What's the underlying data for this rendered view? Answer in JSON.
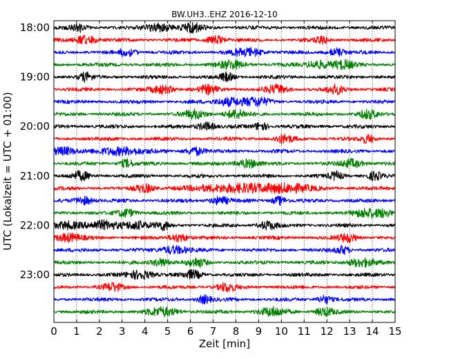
{
  "chart_data": {
    "type": "line",
    "title": "BW.UH3..EHZ 2016-12-10",
    "xlabel": "Zeit  [min]",
    "ylabel": "UTC (Lokalzeit = UTC + 01:00)",
    "xlim": [
      0,
      15
    ],
    "x_ticks": [
      "0",
      "1",
      "2",
      "3",
      "4",
      "5",
      "6",
      "7",
      "8",
      "9",
      "10",
      "11",
      "12",
      "13",
      "14",
      "15"
    ],
    "y_ticks": [
      "18:00",
      "19:00",
      "20:00",
      "21:00",
      "22:00",
      "23:00"
    ],
    "grid": "x dotted",
    "colors": [
      "#000000",
      "#ff0000",
      "#0000ff",
      "#008000"
    ],
    "row_minutes": 15,
    "traces": [
      {
        "start": "18:00",
        "color": "#000000",
        "events": [
          [
            1.1,
            0.3
          ],
          [
            4.6,
            0.6
          ],
          [
            6.1,
            0.5
          ]
        ]
      },
      {
        "start": "18:15",
        "color": "#ff0000",
        "events": [
          [
            1.4,
            0.5
          ],
          [
            7.1,
            0.4
          ],
          [
            11.8,
            0.3
          ]
        ]
      },
      {
        "start": "18:30",
        "color": "#0000ff",
        "events": [
          [
            3.2,
            0.4
          ],
          [
            8.5,
            0.7
          ],
          [
            12.4,
            0.4
          ]
        ]
      },
      {
        "start": "18:45",
        "color": "#008000",
        "events": [
          [
            7.8,
            0.6
          ],
          [
            11.6,
            0.5
          ],
          [
            12.7,
            0.5
          ]
        ]
      },
      {
        "start": "19:00",
        "color": "#000000",
        "events": [
          [
            1.4,
            0.3
          ],
          [
            7.6,
            0.3
          ]
        ]
      },
      {
        "start": "19:15",
        "color": "#ff0000",
        "events": [
          [
            4.8,
            0.5
          ],
          [
            6.8,
            0.4
          ],
          [
            9.8,
            0.5
          ],
          [
            12.4,
            0.4
          ]
        ]
      },
      {
        "start": "19:30",
        "color": "#0000ff",
        "events": [
          [
            7.7,
            0.6
          ],
          [
            8.9,
            0.6
          ]
        ]
      },
      {
        "start": "19:45",
        "color": "#008000",
        "events": [
          [
            6.2,
            0.5
          ],
          [
            8.0,
            0.5
          ],
          [
            13.8,
            0.4
          ]
        ]
      },
      {
        "start": "20:00",
        "color": "#000000",
        "events": [
          [
            6.7,
            0.4
          ],
          [
            9.1,
            0.3
          ]
        ]
      },
      {
        "start": "20:15",
        "color": "#ff0000",
        "events": [
          [
            10.1,
            0.4
          ],
          [
            13.8,
            0.3
          ]
        ]
      },
      {
        "start": "20:30",
        "color": "#0000ff",
        "events": [
          [
            0.4,
            0.6
          ],
          [
            3.0,
            1.0
          ],
          [
            6.2,
            0.4
          ]
        ]
      },
      {
        "start": "20:45",
        "color": "#008000",
        "events": [
          [
            3.2,
            0.3
          ],
          [
            8.5,
            0.5
          ],
          [
            13.1,
            0.5
          ]
        ]
      },
      {
        "start": "21:00",
        "color": "#000000",
        "events": [
          [
            1.2,
            0.4
          ],
          [
            12.4,
            0.3
          ],
          [
            14.1,
            0.3
          ]
        ]
      },
      {
        "start": "21:15",
        "color": "#ff0000",
        "events": [
          [
            4.0,
            0.4
          ],
          [
            7.9,
            1.8
          ],
          [
            10.3,
            1.0
          ]
        ]
      },
      {
        "start": "21:30",
        "color": "#0000ff",
        "events": [
          [
            1.3,
            0.4
          ],
          [
            7.3,
            0.4
          ],
          [
            9.9,
            0.3
          ]
        ]
      },
      {
        "start": "21:45",
        "color": "#008000",
        "events": [
          [
            3.2,
            0.4
          ],
          [
            13.7,
            0.5
          ],
          [
            14.5,
            0.4
          ]
        ]
      },
      {
        "start": "22:00",
        "color": "#000000",
        "events": [
          [
            0.6,
            0.6
          ],
          [
            2.2,
            0.7
          ],
          [
            3.6,
            0.6
          ],
          [
            4.8,
            0.3
          ],
          [
            9.4,
            0.4
          ]
        ]
      },
      {
        "start": "22:15",
        "color": "#ff0000",
        "events": [
          [
            0.6,
            0.6
          ],
          [
            5.5,
            0.4
          ],
          [
            12.9,
            0.4
          ]
        ]
      },
      {
        "start": "22:30",
        "color": "#0000ff",
        "events": [
          [
            5.3,
            0.6
          ],
          [
            12.7,
            0.3
          ]
        ]
      },
      {
        "start": "22:45",
        "color": "#008000",
        "events": [
          [
            4.7,
            0.4
          ],
          [
            6.3,
            0.4
          ],
          [
            13.5,
            0.6
          ]
        ]
      },
      {
        "start": "23:00",
        "color": "#000000",
        "events": [
          [
            3.8,
            0.6
          ],
          [
            6.1,
            0.4
          ]
        ]
      },
      {
        "start": "23:15",
        "color": "#ff0000",
        "events": [
          [
            2.6,
            0.4
          ],
          [
            7.6,
            0.4
          ]
        ]
      },
      {
        "start": "23:30",
        "color": "#0000ff",
        "events": [
          [
            6.6,
            0.3
          ],
          [
            11.9,
            0.3
          ]
        ]
      },
      {
        "start": "23:45",
        "color": "#008000",
        "events": [
          [
            4.8,
            0.7
          ],
          [
            9.6,
            0.6
          ],
          [
            11.9,
            0.4
          ]
        ]
      }
    ]
  }
}
